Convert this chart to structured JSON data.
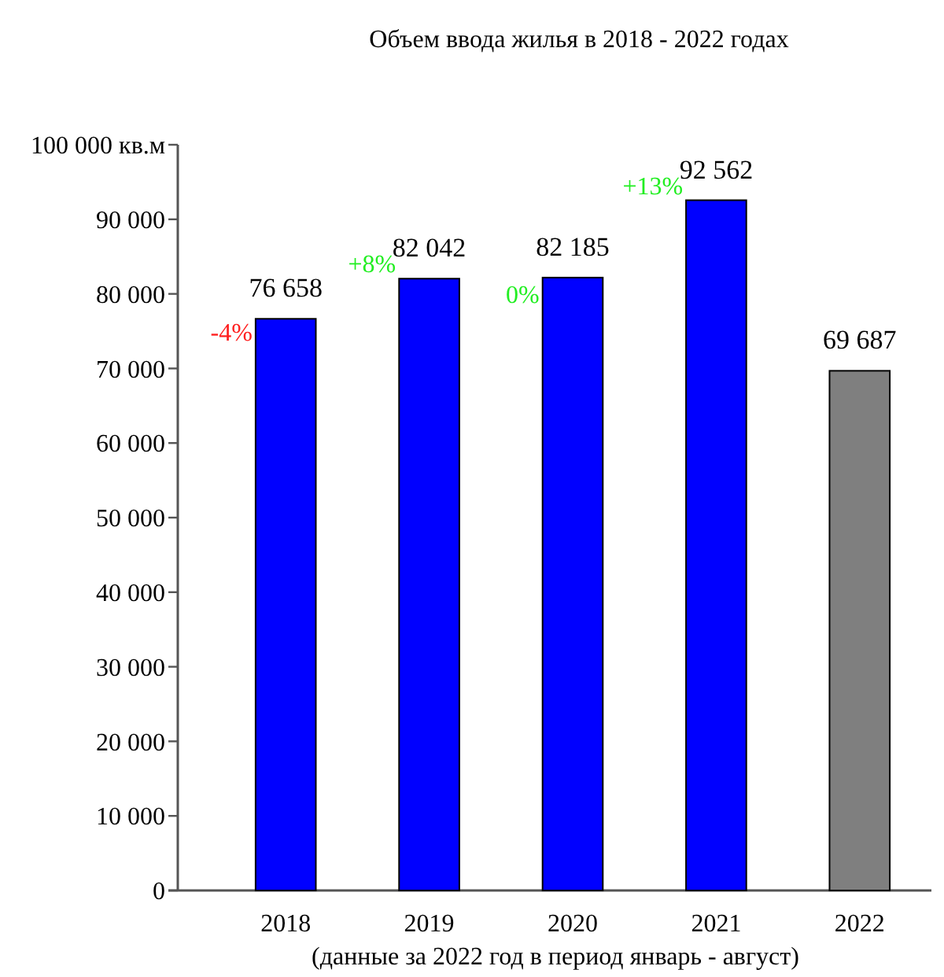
{
  "chart_data": {
    "type": "bar",
    "title": "Объем ввода жилья в 2018 - 2022 годах",
    "categories": [
      "2018",
      "2019",
      "2020",
      "2021",
      "2022"
    ],
    "values": [
      76658,
      82042,
      82185,
      92562,
      69687
    ],
    "colors": [
      "#0000ff",
      "#0000ff",
      "#0000ff",
      "#0000ff",
      "#7f7f7f"
    ],
    "ylim": [
      0,
      100000
    ],
    "yticks": [
      {
        "value": 0,
        "label": "0"
      },
      {
        "value": 10000,
        "label": "10 000"
      },
      {
        "value": 20000,
        "label": "20 000"
      },
      {
        "value": 30000,
        "label": "30 000"
      },
      {
        "value": 40000,
        "label": "40 000"
      },
      {
        "value": 50000,
        "label": "50 000"
      },
      {
        "value": 60000,
        "label": "60 000"
      },
      {
        "value": 70000,
        "label": "70 000"
      },
      {
        "value": 80000,
        "label": "80 000"
      },
      {
        "value": 90000,
        "label": "90 000"
      },
      {
        "value": 100000,
        "label": "100 000 кв.м"
      }
    ],
    "data_labels": true,
    "grid": false,
    "annotations": [
      "-4%",
      "+8%",
      "0%",
      "+13%",
      "(данные за 2022 год в период январь - август)"
    ]
  }
}
